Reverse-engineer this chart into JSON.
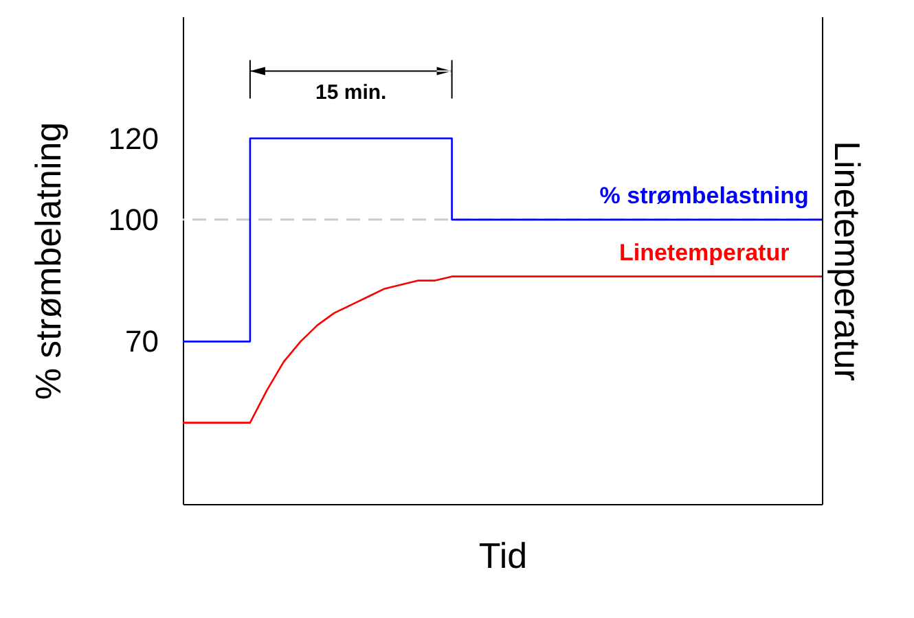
{
  "chart_data": {
    "type": "line",
    "xlabel": "Tid",
    "ylabel": "% strømbelatning",
    "y2label": "Linetemperatur",
    "categories": [
      null,
      null,
      null,
      null,
      null,
      null,
      null,
      null,
      null,
      null,
      null,
      null,
      null,
      null,
      null,
      null,
      null,
      null,
      null,
      null,
      null,
      null,
      null,
      null,
      null,
      null,
      null,
      null,
      null,
      null,
      null,
      null,
      null,
      null,
      null,
      null,
      null,
      null,
      null
    ],
    "series": [
      {
        "name": "% strømbelastning",
        "type": "step",
        "color": "#0000ff",
        "values": [
          70,
          70,
          70,
          70,
          120,
          120,
          120,
          120,
          120,
          120,
          120,
          120,
          120,
          120,
          120,
          120,
          100,
          100,
          100,
          100,
          100,
          100,
          100,
          100,
          100,
          100,
          100,
          100,
          100,
          100,
          100,
          100,
          100,
          100,
          100,
          100,
          100,
          100,
          100
        ]
      },
      {
        "name": "Linetemperatur",
        "type": "line",
        "color": "#ff0000",
        "values": [
          50,
          50,
          50,
          50,
          50,
          58,
          65,
          70,
          74,
          77,
          79,
          81,
          83,
          84,
          85,
          85,
          86,
          86,
          86,
          86,
          86,
          86,
          86,
          86,
          86,
          86,
          86,
          86,
          86,
          86,
          86,
          86,
          86,
          86,
          86,
          86,
          86,
          86,
          86
        ]
      }
    ],
    "ylim": [
      30,
      150
    ],
    "yticks": [
      70,
      100,
      120
    ],
    "ref_lines": [
      {
        "axis": "y",
        "value": 100,
        "color": "#cccccc",
        "line_style": "dashed"
      }
    ],
    "annotations": [
      "15 min."
    ],
    "legend": false,
    "grid": false,
    "marker": "none"
  }
}
